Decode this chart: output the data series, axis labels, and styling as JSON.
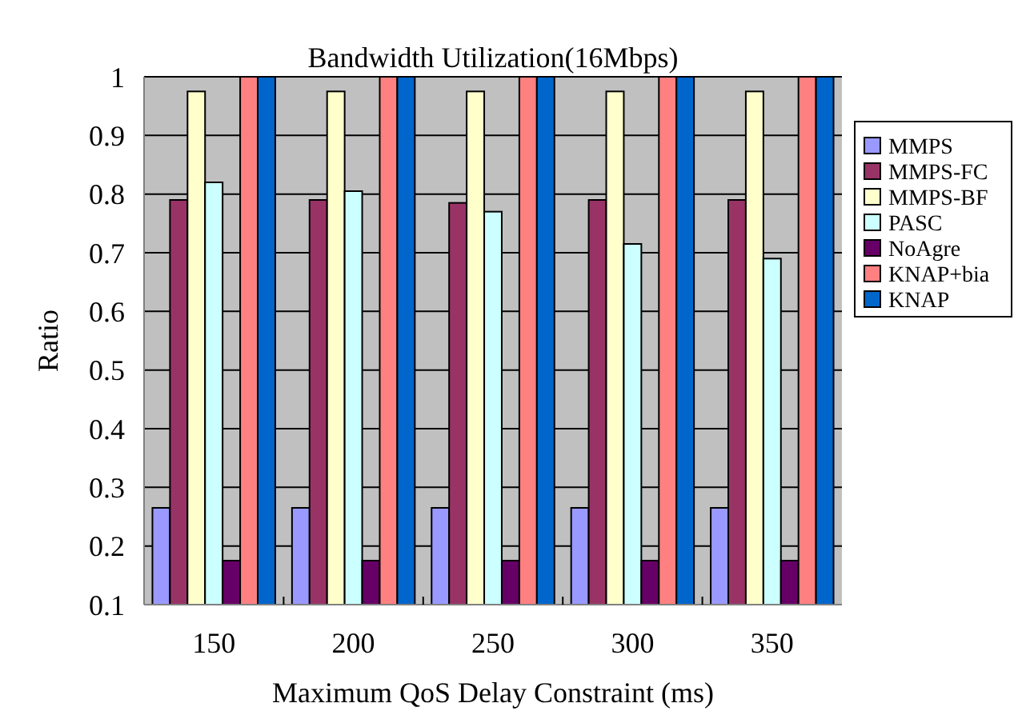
{
  "chart_data": {
    "type": "bar",
    "title": "Bandwidth Utilization(16Mbps)",
    "xlabel": "Maximum QoS Delay Constraint (ms)",
    "ylabel": "Ratio",
    "categories": [
      "150",
      "200",
      "250",
      "300",
      "350"
    ],
    "series": [
      {
        "name": "MMPS",
        "color": "#9999ff",
        "values": [
          0.265,
          0.265,
          0.265,
          0.265,
          0.265
        ]
      },
      {
        "name": "MMPS-FC",
        "color": "#993366",
        "values": [
          0.79,
          0.79,
          0.785,
          0.79,
          0.79
        ]
      },
      {
        "name": "MMPS-BF",
        "color": "#ffffcc",
        "values": [
          0.975,
          0.975,
          0.975,
          0.975,
          0.975
        ]
      },
      {
        "name": "PASC",
        "color": "#ccffff",
        "values": [
          0.82,
          0.805,
          0.77,
          0.715,
          0.69
        ]
      },
      {
        "name": "NoAgre",
        "color": "#660066",
        "values": [
          0.175,
          0.175,
          0.175,
          0.175,
          0.175
        ]
      },
      {
        "name": "KNAP+bia",
        "color": "#ff8080",
        "values": [
          1,
          1,
          1,
          1,
          1
        ]
      },
      {
        "name": "KNAP",
        "color": "#0066cc",
        "values": [
          1,
          1,
          1,
          1,
          1
        ]
      }
    ],
    "ylim": [
      0.1,
      1
    ],
    "yticks": [
      0.1,
      0.2,
      0.3,
      0.4,
      0.5,
      0.6,
      0.7,
      0.8,
      0.9,
      1
    ],
    "grid": "y",
    "legend": "right"
  }
}
